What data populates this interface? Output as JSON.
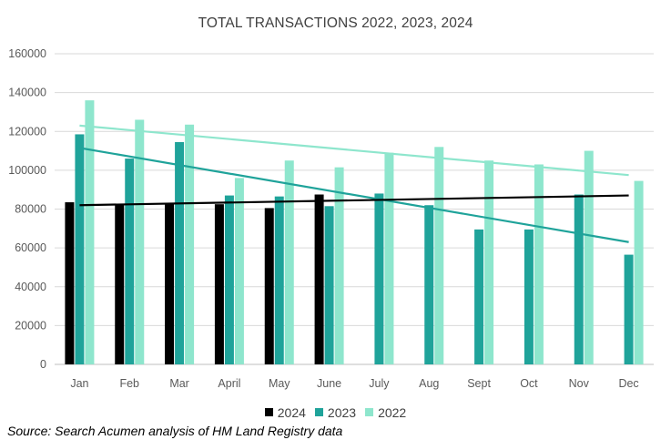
{
  "chart_data": {
    "type": "bar",
    "title": "TOTAL TRANSACTIONS 2022, 2023, 2024",
    "categories": [
      "Jan",
      "Feb",
      "Mar",
      "April",
      "May",
      "June",
      "July",
      "Aug",
      "Sept",
      "Oct",
      "Nov",
      "Dec"
    ],
    "y_ticks": [
      "0",
      "20000",
      "40000",
      "60000",
      "80000",
      "100000",
      "120000",
      "140000",
      "160000"
    ],
    "ylim": [
      0,
      160000
    ],
    "grid": true,
    "legend_position": "bottom",
    "series": [
      {
        "name": "2024",
        "color": "#000000",
        "values": [
          83500,
          82500,
          82500,
          82500,
          80500,
          87500,
          null,
          null,
          null,
          null,
          null,
          null
        ],
        "trendline": [
          82000,
          87000
        ]
      },
      {
        "name": "2023",
        "color": "#1FA39A",
        "values": [
          118500,
          106000,
          114500,
          87000,
          86500,
          81500,
          88000,
          82000,
          69500,
          69500,
          87500,
          56500
        ],
        "trendline": [
          111500,
          63000
        ]
      },
      {
        "name": "2022",
        "color": "#8EE6CD",
        "values": [
          136000,
          126000,
          123500,
          96000,
          105000,
          101500,
          109000,
          112000,
          105000,
          103000,
          110000,
          94500
        ],
        "trendline": [
          123000,
          97500
        ]
      }
    ]
  },
  "source_note": "Source: Search Acumen analysis of HM Land Registry data"
}
